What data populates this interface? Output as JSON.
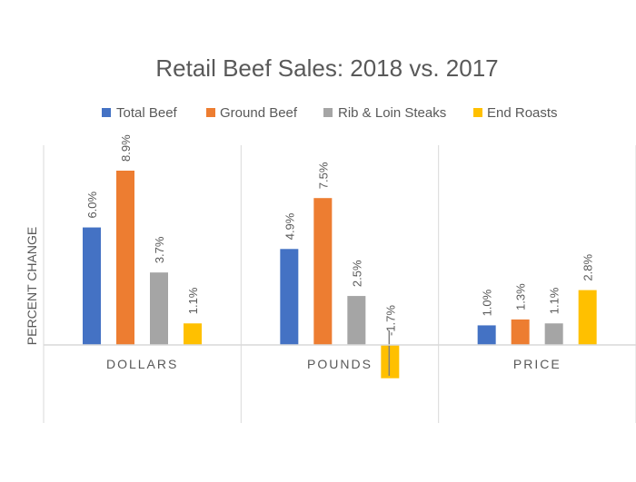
{
  "chart_data": {
    "type": "bar",
    "title": "Retail Beef Sales: 2018 vs. 2017",
    "ylabel": "PERCENT CHANGE",
    "xlabel": "",
    "categories": [
      "DOLLARS",
      "POUNDS",
      "PRICE"
    ],
    "ylim": [
      -2,
      10
    ],
    "grid": false,
    "legend_position": "top",
    "series": [
      {
        "name": "Total Beef",
        "color": "#4472C4",
        "values": [
          6.0,
          4.9,
          1.0
        ],
        "labels": [
          "6.0%",
          "4.9%",
          "1.0%"
        ]
      },
      {
        "name": "Ground Beef",
        "color": "#ED7D31",
        "values": [
          8.9,
          7.5,
          1.3
        ],
        "labels": [
          "8.9%",
          "7.5%",
          "1.3%"
        ]
      },
      {
        "name": "Rib & Loin Steaks",
        "color": "#A5A5A5",
        "values": [
          3.7,
          2.5,
          1.1
        ],
        "labels": [
          "3.7%",
          "2.5%",
          "1.1%"
        ]
      },
      {
        "name": "End Roasts",
        "color": "#FFC000",
        "values": [
          1.1,
          -1.7,
          2.8
        ],
        "labels": [
          "1.1%",
          "-1.7%",
          "2.8%"
        ]
      }
    ]
  }
}
